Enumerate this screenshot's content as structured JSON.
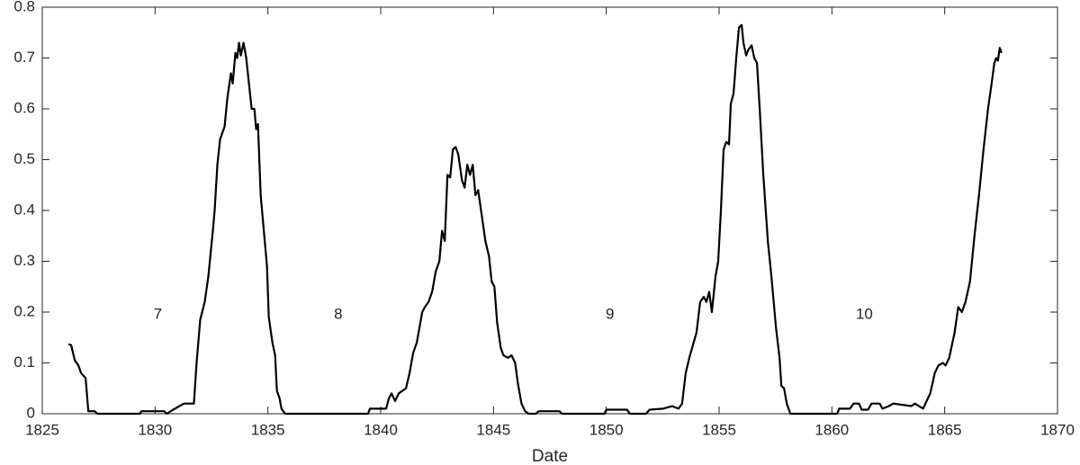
{
  "chart_data": {
    "type": "line",
    "x_label": "Date",
    "xlim": [
      1825,
      1870
    ],
    "xticks": [
      1825,
      1830,
      1835,
      1840,
      1845,
      1850,
      1855,
      1860,
      1865,
      1870
    ],
    "ylim": [
      0,
      0.8
    ],
    "yticks": [
      0,
      0.1,
      0.2,
      0.3,
      0.4,
      0.5,
      0.6,
      0.7,
      0.8
    ],
    "grid": false,
    "annotations": [
      {
        "text": "7",
        "x": 1830.12,
        "y": 0.195
      },
      {
        "text": "8",
        "x": 1838.12,
        "y": 0.195
      },
      {
        "text": "9",
        "x": 1850.16,
        "y": 0.195
      },
      {
        "text": "10",
        "x": 1861.44,
        "y": 0.195
      }
    ],
    "series": [
      {
        "color": "#000000",
        "x": [
          1826.16,
          1826.28,
          1826.44,
          1826.6,
          1826.72,
          1826.92,
          1827.04,
          1827.32,
          1827.44,
          1829.32,
          1829.4,
          1830.4,
          1830.52,
          1830.8,
          1831.28,
          1831.72,
          1831.84,
          1832.0,
          1832.2,
          1832.36,
          1832.56,
          1832.64,
          1832.76,
          1832.88,
          1833.08,
          1833.2,
          1833.36,
          1833.44,
          1833.56,
          1833.64,
          1833.72,
          1833.8,
          1833.92,
          1834.04,
          1834.16,
          1834.28,
          1834.4,
          1834.48,
          1834.56,
          1834.68,
          1834.84,
          1834.96,
          1835.04,
          1835.2,
          1835.32,
          1835.4,
          1835.52,
          1835.6,
          1835.76,
          1839.44,
          1839.52,
          1840.24,
          1840.36,
          1840.48,
          1840.64,
          1840.8,
          1841.12,
          1841.28,
          1841.44,
          1841.6,
          1841.76,
          1841.84,
          1841.96,
          1842.12,
          1842.28,
          1842.44,
          1842.6,
          1842.72,
          1842.84,
          1842.96,
          1843.08,
          1843.2,
          1843.32,
          1843.44,
          1843.6,
          1843.72,
          1843.84,
          1843.96,
          1844.08,
          1844.2,
          1844.32,
          1844.48,
          1844.64,
          1844.8,
          1844.92,
          1845.04,
          1845.16,
          1845.32,
          1845.44,
          1845.64,
          1845.8,
          1845.96,
          1846.08,
          1846.24,
          1846.4,
          1846.56,
          1846.88,
          1847.0,
          1847.92,
          1848.04,
          1849.92,
          1850.0,
          1850.92,
          1851.04,
          1851.76,
          1851.92,
          1852.52,
          1852.92,
          1853.2,
          1853.36,
          1853.52,
          1853.68,
          1853.84,
          1854.0,
          1854.16,
          1854.32,
          1854.44,
          1854.56,
          1854.68,
          1854.84,
          1854.96,
          1855.08,
          1855.2,
          1855.32,
          1855.44,
          1855.52,
          1855.64,
          1855.76,
          1855.88,
          1856.0,
          1856.08,
          1856.2,
          1856.28,
          1856.44,
          1856.56,
          1856.68,
          1856.8,
          1856.96,
          1857.16,
          1857.32,
          1857.52,
          1857.68,
          1857.76,
          1857.88,
          1858.0,
          1858.16,
          1860.24,
          1860.32,
          1860.8,
          1860.96,
          1861.2,
          1861.32,
          1861.6,
          1861.76,
          1862.12,
          1862.24,
          1862.52,
          1862.72,
          1863.52,
          1863.68,
          1864.04,
          1864.2,
          1864.36,
          1864.56,
          1864.72,
          1864.92,
          1865.04,
          1865.2,
          1865.44,
          1865.6,
          1865.76,
          1865.92,
          1866.12,
          1866.32,
          1866.52,
          1866.72,
          1866.92,
          1867.08,
          1867.2,
          1867.28,
          1867.36,
          1867.44,
          1867.52
        ],
        "values": [
          0.137,
          0.135,
          0.105,
          0.095,
          0.08,
          0.07,
          0.005,
          0.005,
          0,
          0,
          0.005,
          0.005,
          0,
          0.008,
          0.02,
          0.02,
          0.1,
          0.185,
          0.22,
          0.27,
          0.36,
          0.4,
          0.49,
          0.54,
          0.565,
          0.62,
          0.67,
          0.65,
          0.71,
          0.7,
          0.73,
          0.705,
          0.73,
          0.7,
          0.65,
          0.6,
          0.6,
          0.56,
          0.57,
          0.43,
          0.35,
          0.29,
          0.19,
          0.14,
          0.115,
          0.045,
          0.03,
          0.01,
          0,
          0,
          0.01,
          0.01,
          0.03,
          0.04,
          0.025,
          0.04,
          0.05,
          0.08,
          0.12,
          0.14,
          0.18,
          0.2,
          0.21,
          0.22,
          0.24,
          0.28,
          0.3,
          0.36,
          0.34,
          0.47,
          0.465,
          0.52,
          0.525,
          0.51,
          0.46,
          0.445,
          0.49,
          0.47,
          0.49,
          0.43,
          0.44,
          0.39,
          0.34,
          0.31,
          0.26,
          0.25,
          0.18,
          0.13,
          0.115,
          0.11,
          0.115,
          0.1,
          0.06,
          0.02,
          0.005,
          0,
          0,
          0.005,
          0.005,
          0,
          0,
          0.008,
          0.008,
          0,
          0,
          0.008,
          0.01,
          0.015,
          0.01,
          0.02,
          0.08,
          0.11,
          0.135,
          0.16,
          0.22,
          0.23,
          0.22,
          0.24,
          0.2,
          0.27,
          0.3,
          0.4,
          0.52,
          0.535,
          0.53,
          0.61,
          0.63,
          0.7,
          0.76,
          0.765,
          0.73,
          0.705,
          0.715,
          0.725,
          0.7,
          0.69,
          0.6,
          0.47,
          0.34,
          0.27,
          0.17,
          0.11,
          0.055,
          0.05,
          0.02,
          0,
          0,
          0.01,
          0.01,
          0.02,
          0.02,
          0.008,
          0.008,
          0.02,
          0.02,
          0.01,
          0.015,
          0.02,
          0.015,
          0.02,
          0.01,
          0.025,
          0.04,
          0.08,
          0.095,
          0.1,
          0.095,
          0.11,
          0.16,
          0.21,
          0.2,
          0.22,
          0.26,
          0.35,
          0.43,
          0.52,
          0.6,
          0.65,
          0.69,
          0.7,
          0.695,
          0.72,
          0.71
        ]
      }
    ]
  }
}
